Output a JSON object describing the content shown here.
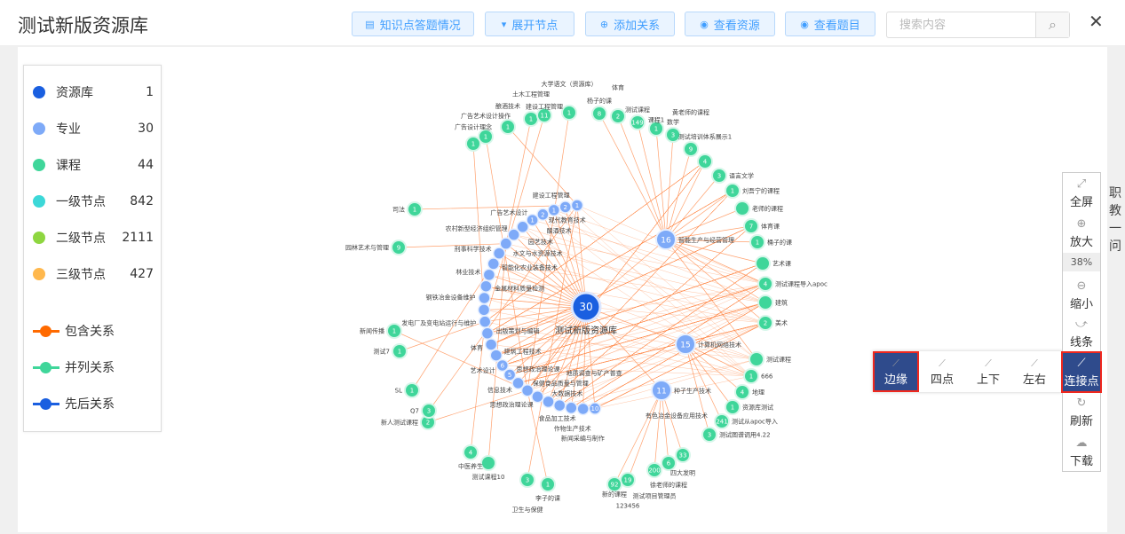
{
  "header": {
    "title": "测试新版资源库",
    "buttons": [
      {
        "label": "知识点答题情况",
        "icon": "document-icon"
      },
      {
        "label": "展开节点",
        "icon": "caret-down-icon"
      },
      {
        "label": "添加关系",
        "icon": "plus-circle-icon"
      },
      {
        "label": "查看资源",
        "icon": "eye-icon"
      },
      {
        "label": "查看题目",
        "icon": "eye-icon"
      }
    ],
    "search": {
      "placeholder": "搜索内容",
      "value": ""
    }
  },
  "legend": {
    "nodes": [
      {
        "label": "资源库",
        "count": "1",
        "color": "#1a5fe0"
      },
      {
        "label": "专业",
        "count": "30",
        "color": "#7eaaf8"
      },
      {
        "label": "课程",
        "count": "44",
        "color": "#3fd69a"
      },
      {
        "label": "一级节点",
        "count": "842",
        "color": "#3cd8d8"
      },
      {
        "label": "二级节点",
        "count": "2111",
        "color": "#8ed640"
      },
      {
        "label": "三级节点",
        "count": "427",
        "color": "#ffb84d"
      }
    ],
    "relations": [
      {
        "label": "包含关系",
        "color": "#ff6a00"
      },
      {
        "label": "并列关系",
        "color": "#3fd69a"
      },
      {
        "label": "先后关系",
        "color": "#1a5fe0"
      }
    ]
  },
  "graph": {
    "root": {
      "count": "30",
      "label": "测试新版资源库"
    },
    "majors": [
      {
        "count": "1",
        "label": ""
      },
      {
        "count": "2",
        "label": "现代教育技术"
      },
      {
        "count": "1",
        "label": "建设工程管理"
      },
      {
        "count": "2",
        "label": "酿酒技术"
      },
      {
        "count": "1",
        "label": "广告艺术设计"
      },
      {
        "count": "",
        "label": "园艺技术"
      },
      {
        "count": "",
        "label": "农村新型经济组织管理"
      },
      {
        "count": "",
        "label": "水文与水资源技术"
      },
      {
        "count": "",
        "label": "刑事科学技术"
      },
      {
        "count": "",
        "label": "智能化农业装备技术"
      },
      {
        "count": "",
        "label": "林业技术"
      },
      {
        "count": "",
        "label": "金属材料质量检测"
      },
      {
        "count": "",
        "label": "钢铁冶金设备维护"
      },
      {
        "count": "",
        "label": ""
      },
      {
        "count": "",
        "label": "发电厂及变电站运行与维护"
      },
      {
        "count": "",
        "label": "出版策划与编辑"
      },
      {
        "count": "",
        "label": "体育"
      },
      {
        "count": "",
        "label": "建筑工程技术"
      },
      {
        "count": "6",
        "label": "艺术设计"
      },
      {
        "count": "5",
        "label": "思想政治理论课"
      },
      {
        "count": "",
        "label": "信息技术"
      },
      {
        "count": "",
        "label": "保健食品质量与管理"
      },
      {
        "count": "",
        "label": "思想政治理论课"
      },
      {
        "count": "",
        "label": "大数据技术"
      },
      {
        "count": "",
        "label": "食品加工技术"
      },
      {
        "count": "",
        "label": "作物生产技术"
      },
      {
        "count": "",
        "label": "新闻采编与制作"
      },
      {
        "count": "10",
        "label": "地质调查与矿产普查"
      }
    ],
    "extra_majors": [
      {
        "count": "16",
        "label": "智能生产与经营管理"
      },
      {
        "count": "15",
        "label": "计算机网络技术"
      },
      {
        "count": "11",
        "label": "种子生产技术"
      },
      {
        "count": "",
        "label": "有色冶金设备应用技术"
      }
    ],
    "courses": [
      {
        "count": "1",
        "label": "司法"
      },
      {
        "count": "9",
        "label": "园林艺术与管理"
      },
      {
        "count": "1",
        "label": "广告设计理念"
      },
      {
        "count": "1",
        "label": "广告艺术设计操作"
      },
      {
        "count": "1",
        "label": "酿酒技术"
      },
      {
        "count": "1",
        "label": "土木工程管理"
      },
      {
        "count": "11",
        "label": "建设工程管理"
      },
      {
        "count": "1",
        "label": "大学语文（资源库）"
      },
      {
        "count": "8",
        "label": "杨子的课"
      },
      {
        "count": "2",
        "label": "体育"
      },
      {
        "count": "149",
        "label": "测试课程"
      },
      {
        "count": "1",
        "label": "课程1"
      },
      {
        "count": "3",
        "label": "数学"
      },
      {
        "count": "9",
        "label": "黄老师的课程"
      },
      {
        "count": "4",
        "label": "测试培训体系展示1"
      },
      {
        "count": "3",
        "label": "语言文学"
      },
      {
        "count": "1",
        "label": "刘吾宁的课程"
      },
      {
        "count": "",
        "label": "老师的课程"
      },
      {
        "count": "7",
        "label": "体育课"
      },
      {
        "count": "1",
        "label": "桶子的课"
      },
      {
        "count": "",
        "label": "艺术课"
      },
      {
        "count": "4",
        "label": "测试课程导入apoc"
      },
      {
        "count": "",
        "label": "建筑"
      },
      {
        "count": "2",
        "label": "美术"
      },
      {
        "count": "",
        "label": "测试课程"
      },
      {
        "count": "1",
        "label": "666"
      },
      {
        "count": "4",
        "label": "地理"
      },
      {
        "count": "1",
        "label": "资源库测试"
      },
      {
        "count": "241",
        "label": "测试从apoc导入"
      },
      {
        "count": "3",
        "label": "测试图谱调用4.22"
      },
      {
        "count": "33",
        "label": "四大发明"
      },
      {
        "count": "6",
        "label": "徐老师的课程"
      },
      {
        "count": "200",
        "label": "测试项目管理员"
      },
      {
        "count": "19",
        "label": "123456"
      },
      {
        "count": "92",
        "label": "新的课程"
      },
      {
        "count": "1",
        "label": "李子的课"
      },
      {
        "count": "3",
        "label": "卫生与保健"
      },
      {
        "count": "",
        "label": "测试课程10"
      },
      {
        "count": "4",
        "label": "中医养生"
      },
      {
        "count": "2",
        "label": "新人测试课程"
      },
      {
        "count": "3",
        "label": "Q7"
      },
      {
        "count": "1",
        "label": "SL"
      },
      {
        "count": "1",
        "label": "测试7"
      },
      {
        "count": "1",
        "label": "新闻传播"
      }
    ]
  },
  "toolbar": {
    "items": [
      {
        "label": "全屏",
        "icon": "fullscreen-icon"
      },
      {
        "label": "放大",
        "icon": "zoom-in-icon"
      },
      {
        "label": "缩小",
        "icon": "zoom-out-icon"
      },
      {
        "label": "线条",
        "icon": "line-chart-icon"
      },
      {
        "label": "连接点",
        "icon": "connector-icon",
        "active": true
      },
      {
        "label": "刷新",
        "icon": "refresh-icon"
      },
      {
        "label": "下载",
        "icon": "download-icon"
      }
    ],
    "zoom": "38%",
    "anchor_options": [
      {
        "label": "边缘",
        "active": true
      },
      {
        "label": "四点"
      },
      {
        "label": "上下"
      },
      {
        "label": "左右"
      }
    ]
  },
  "side_text": "职教一问"
}
